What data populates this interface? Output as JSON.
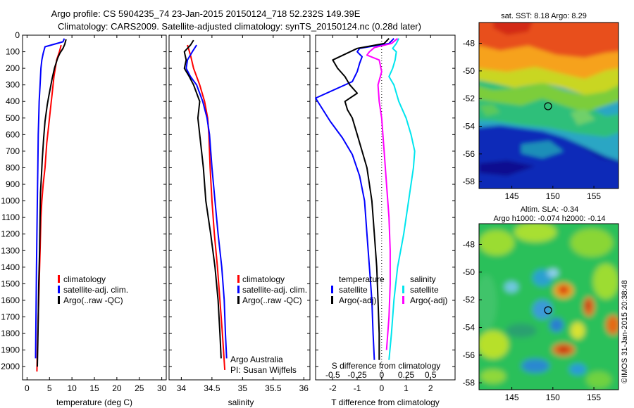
{
  "header": {
    "line1": "Argo profile: CS 5904235_74 23-Jan-2015 20150124_718 52.232S 149.39E",
    "line2": "Climatology: CARS2009. Satellite-adjusted climatology: synTS_20150124.nc (0.28d later)"
  },
  "colors": {
    "climatology": "#ff0000",
    "satellite": "#0000ff",
    "argo": "#000000",
    "sat_salinity": "#00e5ee",
    "argo_salinity_diff": "#ff00ff"
  },
  "chart_data": [
    {
      "type": "line",
      "xlabel": "temperature (deg C)",
      "ylabel": "",
      "xlim": [
        -1,
        31
      ],
      "ylim": [
        2080,
        0
      ],
      "xticks": [
        0,
        5,
        10,
        15,
        20,
        25,
        30
      ],
      "yticks": [
        0,
        100,
        200,
        300,
        400,
        500,
        600,
        700,
        800,
        900,
        1000,
        1100,
        1200,
        1300,
        1400,
        1500,
        1600,
        1700,
        1800,
        1900,
        2000
      ],
      "legend": [
        "climatology",
        "satellite-adj. clim.",
        "Argo(..raw -QC)"
      ],
      "series": [
        {
          "name": "climatology",
          "color": "#ff0000",
          "points": [
            [
              7.6,
              60
            ],
            [
              7.2,
              100
            ],
            [
              6.6,
              150
            ],
            [
              6.0,
              250
            ],
            [
              5.6,
              350
            ],
            [
              5.2,
              450
            ],
            [
              4.8,
              550
            ],
            [
              4.4,
              650
            ],
            [
              4.0,
              800
            ],
            [
              3.6,
              900
            ],
            [
              3.3,
              1000
            ],
            [
              3.1,
              1100
            ],
            [
              2.9,
              1300
            ],
            [
              2.7,
              1500
            ],
            [
              2.5,
              1700
            ],
            [
              2.3,
              1900
            ],
            [
              2.2,
              2030
            ]
          ]
        },
        {
          "name": "satellite-adj. clim.",
          "color": "#0000ff",
          "points": [
            [
              8.3,
              20
            ],
            [
              8.0,
              40
            ],
            [
              4.0,
              70
            ],
            [
              3.6,
              110
            ],
            [
              3.3,
              150
            ],
            [
              3.1,
              200
            ],
            [
              2.9,
              300
            ],
            [
              2.7,
              400
            ],
            [
              2.6,
              500
            ],
            [
              2.5,
              600
            ],
            [
              2.4,
              800
            ],
            [
              2.3,
              1000
            ],
            [
              2.2,
              1200
            ],
            [
              2.1,
              1400
            ],
            [
              2.0,
              1700
            ],
            [
              1.9,
              1950
            ]
          ]
        },
        {
          "name": "Argo(..raw -QC)",
          "color": "#000000",
          "points": [
            [
              8.7,
              25
            ],
            [
              8.4,
              55
            ],
            [
              8.0,
              80
            ],
            [
              7.3,
              110
            ],
            [
              6.8,
              140
            ],
            [
              6.1,
              200
            ],
            [
              5.6,
              260
            ],
            [
              4.9,
              360
            ],
            [
              4.5,
              420
            ],
            [
              4.0,
              520
            ],
            [
              3.7,
              620
            ],
            [
              3.4,
              750
            ],
            [
              3.2,
              850
            ],
            [
              3.0,
              950
            ],
            [
              2.9,
              1100
            ],
            [
              2.8,
              1300
            ],
            [
              2.6,
              1500
            ],
            [
              2.5,
              1700
            ],
            [
              2.4,
              1850
            ],
            [
              2.3,
              2000
            ]
          ]
        }
      ]
    },
    {
      "type": "line",
      "xlabel": "salinity",
      "xlim": [
        33.8,
        36.1
      ],
      "ylim": [
        2080,
        0
      ],
      "xticks": [
        34,
        34.5,
        35,
        35.5,
        36
      ],
      "legend": [
        "climatology",
        "satellite-adj. clim.",
        "Argo(..raw -QC)"
      ],
      "annotation": [
        "Argo Australia",
        "PI: Susan Wijffels"
      ],
      "series": [
        {
          "name": "climatology",
          "color": "#ff0000",
          "points": [
            [
              34.1,
              60
            ],
            [
              34.15,
              120
            ],
            [
              34.2,
              200
            ],
            [
              34.3,
              300
            ],
            [
              34.38,
              400
            ],
            [
              34.43,
              500
            ],
            [
              34.45,
              600
            ],
            [
              34.47,
              800
            ],
            [
              34.5,
              1000
            ],
            [
              34.54,
              1200
            ],
            [
              34.59,
              1400
            ],
            [
              34.63,
              1600
            ],
            [
              34.67,
              1800
            ],
            [
              34.71,
              2020
            ]
          ]
        },
        {
          "name": "satellite-adj. clim.",
          "color": "#0000ff",
          "points": [
            [
              34.25,
              60
            ],
            [
              34.18,
              100
            ],
            [
              34.1,
              150
            ],
            [
              34.08,
              200
            ],
            [
              34.15,
              250
            ],
            [
              34.25,
              300
            ],
            [
              34.35,
              400
            ],
            [
              34.42,
              500
            ],
            [
              34.46,
              600
            ],
            [
              34.5,
              800
            ],
            [
              34.55,
              1000
            ],
            [
              34.6,
              1200
            ],
            [
              34.66,
              1400
            ],
            [
              34.7,
              1600
            ],
            [
              34.72,
              1800
            ],
            [
              34.74,
              1950
            ]
          ]
        },
        {
          "name": "Argo(..raw -QC)",
          "color": "#000000",
          "points": [
            [
              34.2,
              30
            ],
            [
              34.15,
              60
            ],
            [
              34.05,
              100
            ],
            [
              34.08,
              150
            ],
            [
              34.05,
              200
            ],
            [
              34.13,
              250
            ],
            [
              34.2,
              300
            ],
            [
              34.3,
              400
            ],
            [
              34.27,
              500
            ],
            [
              34.3,
              600
            ],
            [
              34.33,
              700
            ],
            [
              34.36,
              800
            ],
            [
              34.4,
              1000
            ],
            [
              34.48,
              1200
            ],
            [
              34.55,
              1400
            ],
            [
              34.6,
              1600
            ],
            [
              34.63,
              1800
            ],
            [
              34.65,
              1950
            ]
          ]
        }
      ]
    },
    {
      "type": "line",
      "xlabel": "T difference from climatology",
      "xlabel2": "S difference from climatology",
      "xlim": [
        -2.7,
        3.0
      ],
      "ylim": [
        2080,
        0
      ],
      "xticks": [
        -2,
        -1,
        0,
        1,
        2
      ],
      "xticks2": [
        -0.5,
        -0.25,
        0,
        0.25,
        0.5
      ],
      "xticklabels2": [
        "-0.5",
        "-0.25",
        "0",
        "0.25",
        "0.5"
      ],
      "legend_temperature": [
        "temperature",
        "satellite",
        "Argo(-adj)"
      ],
      "legend_salinity": [
        "salinity",
        "satellite",
        "Argo(-adj)"
      ],
      "series": [
        {
          "name": "satellite",
          "color": "#0000ff",
          "points": [
            [
              0.5,
              20
            ],
            [
              0.3,
              50
            ],
            [
              -0.9,
              80
            ],
            [
              -1.0,
              100
            ],
            [
              -0.8,
              130
            ],
            [
              -0.9,
              170
            ],
            [
              -1.0,
              220
            ],
            [
              -1.2,
              280
            ],
            [
              -2.7,
              380
            ],
            [
              -2.1,
              520
            ],
            [
              -1.6,
              620
            ],
            [
              -1.2,
              720
            ],
            [
              -0.9,
              850
            ],
            [
              -0.7,
              1000
            ],
            [
              -0.6,
              1200
            ],
            [
              -0.5,
              1400
            ],
            [
              -0.4,
              1600
            ],
            [
              -0.35,
              1800
            ],
            [
              -0.3,
              1960
            ]
          ]
        },
        {
          "name": "Argo(-adj)",
          "color": "#000000",
          "points": [
            [
              0.3,
              20
            ],
            [
              0.1,
              50
            ],
            [
              -1.0,
              80
            ],
            [
              -2.0,
              150
            ],
            [
              -1.8,
              200
            ],
            [
              -1.5,
              250
            ],
            [
              -1.3,
              300
            ],
            [
              -1.0,
              350
            ],
            [
              -1.5,
              400
            ],
            [
              -1.4,
              450
            ],
            [
              -1.2,
              500
            ],
            [
              -1.0,
              600
            ],
            [
              -0.8,
              700
            ],
            [
              -0.6,
              800
            ],
            [
              -0.5,
              900
            ],
            [
              -0.4,
              1000
            ],
            [
              -0.3,
              1200
            ],
            [
              -0.2,
              1400
            ],
            [
              -0.15,
              1600
            ],
            [
              -0.1,
              1800
            ],
            [
              -0.1,
              1960
            ]
          ]
        },
        {
          "name": "salinity satellite",
          "color": "#00e5ee",
          "points": [
            [
              0.7,
              20
            ],
            [
              0.6,
              50
            ],
            [
              0.45,
              80
            ],
            [
              0.6,
              100
            ],
            [
              0.55,
              150
            ],
            [
              0.45,
              200
            ],
            [
              0.3,
              250
            ],
            [
              0.5,
              300
            ],
            [
              0.7,
              400
            ],
            [
              1.0,
              500
            ],
            [
              1.2,
              600
            ],
            [
              1.35,
              700
            ],
            [
              1.3,
              800
            ],
            [
              1.1,
              1000
            ],
            [
              0.9,
              1200
            ],
            [
              0.65,
              1400
            ],
            [
              0.5,
              1600
            ],
            [
              0.4,
              1800
            ],
            [
              0.3,
              1960
            ]
          ]
        },
        {
          "name": "salinity Argo(-adj)",
          "color": "#ff00ff",
          "points": [
            [
              0.65,
              20
            ],
            [
              0.4,
              50
            ],
            [
              -0.3,
              75
            ],
            [
              -0.5,
              100
            ],
            [
              -0.6,
              120
            ],
            [
              -0.1,
              150
            ],
            [
              0.0,
              220
            ],
            [
              -0.15,
              300
            ],
            [
              -0.1,
              400
            ],
            [
              0.0,
              500
            ],
            [
              0.1,
              700
            ],
            [
              0.2,
              900
            ],
            [
              0.3,
              1100
            ],
            [
              0.35,
              1300
            ],
            [
              0.35,
              1500
            ],
            [
              0.3,
              1700
            ],
            [
              0.2,
              1900
            ]
          ]
        }
      ],
      "zero_line": true
    }
  ],
  "maps": {
    "sst": {
      "title": "sat. SST: 8.18 Argo: 8.29",
      "xticks": [
        145,
        150,
        155
      ],
      "yticks": [
        -48,
        -50,
        -52,
        -54,
        -56,
        -58
      ],
      "xlim": [
        141,
        158
      ],
      "ylim": [
        -58.5,
        -46.5
      ],
      "marker": {
        "lon": 149.39,
        "lat": -52.232
      }
    },
    "sla": {
      "title1": "Altim. SLA: -0.34",
      "title2": "Argo h1000: -0.074 h2000: -0.14",
      "xticks": [
        145,
        150,
        155
      ],
      "yticks": [
        -48,
        -50,
        -52,
        -54,
        -56,
        -58
      ],
      "xlim": [
        141,
        158
      ],
      "ylim": [
        -58.5,
        -46.5
      ],
      "marker": {
        "lon": 149.39,
        "lat": -52.232
      }
    }
  },
  "credit": "©IMOS 31-Jan-2015 20:38:48"
}
